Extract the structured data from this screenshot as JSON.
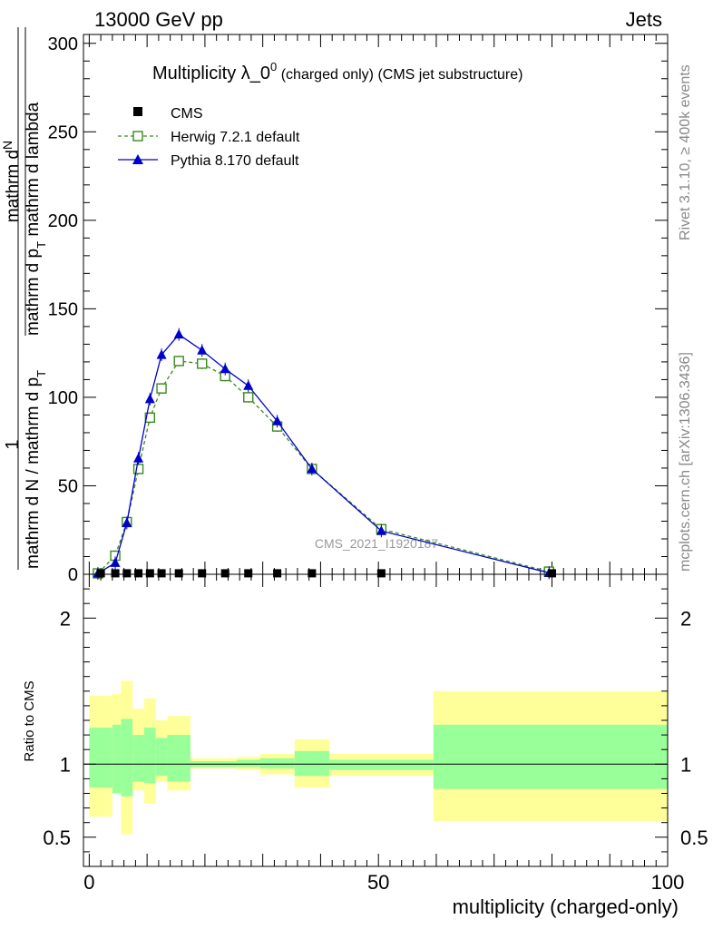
{
  "header": {
    "left": "13000 GeV pp",
    "right": "Jets"
  },
  "side_text": {
    "rivet": "Rivet 3.1.10, ≥ 400k events",
    "mcplots": "mcplots.cern.ch [arXiv:1306.3436]"
  },
  "colors": {
    "cms": "#000000",
    "herwig": "#3a8a1e",
    "pythia": "#0000cc",
    "band_inner": "#99ff99",
    "band_outer": "#ffff99"
  },
  "chart_data": [
    {
      "type": "line",
      "title": "Multiplicity λ_0",
      "title_sup": "0",
      "title_suffix": " (charged only) (CMS jet substructure)",
      "watermark": "CMS_2021_I1920187",
      "ylabel_num": "1",
      "ylabel_den": "mathrm d N / mathrm d p",
      "ylabel_den2": "T",
      "ylabel_mid": "mathrm d p",
      "ylabel_mid2": "T",
      "ylabel_top": "mathrm d",
      "ylabel_top2": "N",
      "ylabel_tail": "mathrm d lambda",
      "ylabel_full": "mathrm d N / mathrm d p_T mathrm d p_T mathrm dN mathrm d lambda",
      "xlim": [
        -1,
        100
      ],
      "ylim": [
        0,
        305
      ],
      "yticks": [
        0,
        50,
        100,
        150,
        200,
        250,
        300
      ],
      "legend_position": "top-left",
      "series": [
        {
          "name": "CMS",
          "x": [
            2,
            4.5,
            6.5,
            8.5,
            10.5,
            12.5,
            15.5,
            19.5,
            23.5,
            27.5,
            32.5,
            38.5,
            50.5,
            80
          ],
          "values": [
            0.3,
            0.3,
            0.3,
            0.3,
            0.3,
            0.3,
            0.3,
            0.3,
            0.3,
            0.3,
            0.3,
            0.3,
            0.3,
            0.3
          ]
        },
        {
          "name": "Herwig 7.2.1 default",
          "x": [
            1.5,
            4.5,
            6.5,
            8.5,
            10.5,
            12.5,
            15.5,
            19.5,
            23.5,
            27.5,
            32.5,
            38.5,
            50.5,
            79.5
          ],
          "values": [
            0.5,
            10.5,
            29.5,
            59.5,
            88.5,
            105,
            120.5,
            119,
            112,
            100,
            83.5,
            59.5,
            25.5,
            1.5
          ]
        },
        {
          "name": "Pythia 8.170 default",
          "x": [
            1.5,
            4.5,
            6.5,
            8.5,
            10.5,
            12.5,
            15.5,
            19.5,
            23.5,
            27.5,
            32.5,
            38.5,
            50.5,
            79.5
          ],
          "values": [
            0.5,
            6.5,
            29,
            65.5,
            99,
            124,
            135.5,
            126.5,
            116,
            106.5,
            86.5,
            59.5,
            24.5,
            0.8
          ]
        }
      ]
    },
    {
      "type": "area",
      "ylabel": "Ratio to CMS",
      "xlabel": "multiplicity (charged-only)",
      "xlim": [
        -1,
        100
      ],
      "ylim": [
        0.3,
        2.3
      ],
      "yticks": [
        0.5,
        1,
        2
      ],
      "xticks": [
        0,
        50,
        100
      ],
      "reference": 1,
      "bins": [
        {
          "x0": 0,
          "x1": 4,
          "outer": [
            0.64,
            1.47
          ],
          "inner": [
            0.84,
            1.25
          ]
        },
        {
          "x0": 4,
          "x1": 5.5,
          "outer": [
            0.8,
            1.48
          ],
          "inner": [
            0.8,
            1.27
          ]
        },
        {
          "x0": 5.5,
          "x1": 7.5,
          "outer": [
            0.52,
            1.57
          ],
          "inner": [
            0.78,
            1.31
          ]
        },
        {
          "x0": 7.5,
          "x1": 9.5,
          "outer": [
            0.82,
            1.38
          ],
          "inner": [
            0.88,
            1.2
          ]
        },
        {
          "x0": 9.5,
          "x1": 11.5,
          "outer": [
            0.73,
            1.45
          ],
          "inner": [
            0.87,
            1.25
          ]
        },
        {
          "x0": 11.5,
          "x1": 13.5,
          "outer": [
            0.88,
            1.3
          ],
          "inner": [
            0.92,
            1.18
          ]
        },
        {
          "x0": 13.5,
          "x1": 17.5,
          "outer": [
            0.82,
            1.33
          ],
          "inner": [
            0.88,
            1.2
          ]
        },
        {
          "x0": 17.5,
          "x1": 21.5,
          "outer": [
            0.97,
            1.04
          ],
          "inner": [
            0.98,
            1.02
          ]
        },
        {
          "x0": 21.5,
          "x1": 25.5,
          "outer": [
            0.97,
            1.04
          ],
          "inner": [
            0.98,
            1.02
          ]
        },
        {
          "x0": 25.5,
          "x1": 29.5,
          "outer": [
            0.96,
            1.05
          ],
          "inner": [
            0.98,
            1.03
          ]
        },
        {
          "x0": 29.5,
          "x1": 35.5,
          "outer": [
            0.93,
            1.07
          ],
          "inner": [
            0.97,
            1.04
          ]
        },
        {
          "x0": 35.5,
          "x1": 41.5,
          "outer": [
            0.84,
            1.17
          ],
          "inner": [
            0.92,
            1.09
          ]
        },
        {
          "x0": 41.5,
          "x1": 59.5,
          "outer": [
            0.92,
            1.07
          ],
          "inner": [
            0.96,
            1.03
          ]
        },
        {
          "x0": 59.5,
          "x1": 100,
          "outer": [
            0.61,
            1.5
          ],
          "inner": [
            0.83,
            1.27
          ]
        }
      ]
    }
  ]
}
